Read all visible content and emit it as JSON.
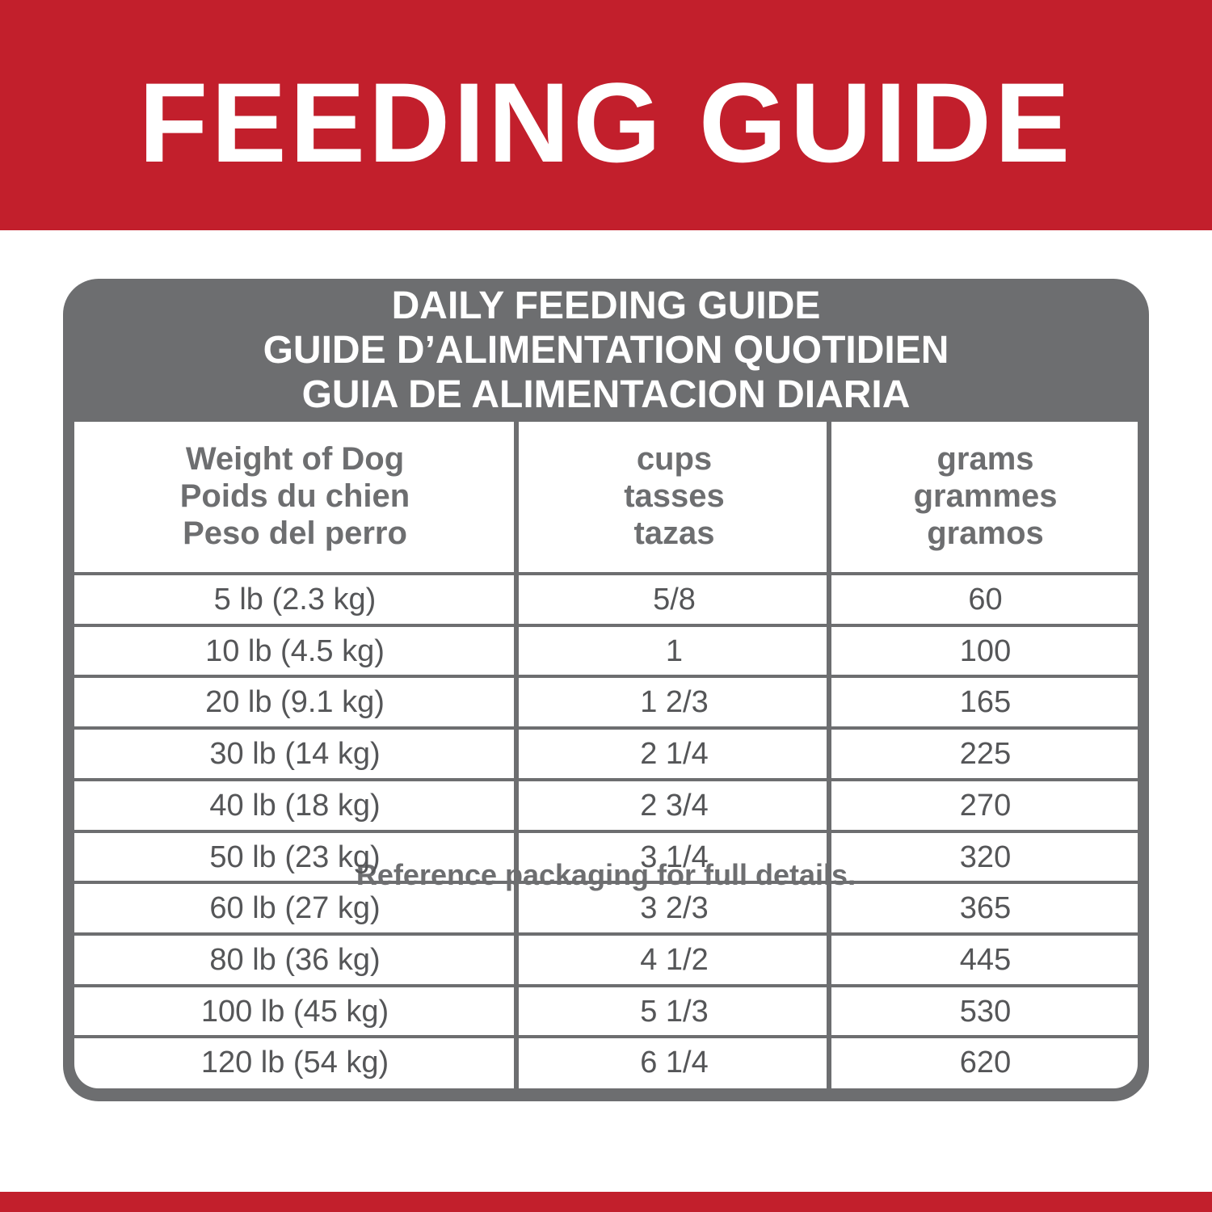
{
  "banner": {
    "title": "FEEDING GUIDE"
  },
  "table": {
    "title": [
      "DAILY FEEDING GUIDE",
      "GUIDE D’ALIMENTATION QUOTIDIEN",
      "GUIA DE ALIMENTACION DIARIA"
    ],
    "headers": [
      [
        "Weight of Dog",
        "Poids du chien",
        "Peso del perro"
      ],
      [
        "cups",
        "tasses",
        "tazas"
      ],
      [
        "grams",
        "grammes",
        "gramos"
      ]
    ],
    "rows": [
      [
        "5 lb (2.3 kg)",
        "5/8",
        "60"
      ],
      [
        "10 lb (4.5 kg)",
        "1",
        "100"
      ],
      [
        "20 lb (9.1 kg)",
        "1 2/3",
        "165"
      ],
      [
        "30 lb (14 kg)",
        "2 1/4",
        "225"
      ],
      [
        "40 lb (18 kg)",
        "2 3/4",
        "270"
      ],
      [
        "50 lb (23 kg)",
        "3 1/4",
        "320"
      ],
      [
        "60 lb (27 kg)",
        "3 2/3",
        "365"
      ],
      [
        "80 lb (36 kg)",
        "4 1/2",
        "445"
      ],
      [
        "100 lb (45 kg)",
        "5 1/3",
        "530"
      ],
      [
        "120 lb (54 kg)",
        "6 1/4",
        "620"
      ]
    ]
  },
  "footer": {
    "note": "Reference packaging for full details."
  }
}
